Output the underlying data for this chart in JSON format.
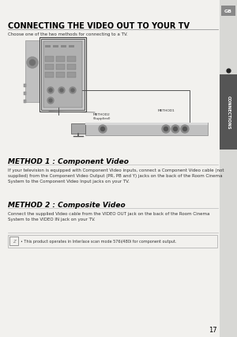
{
  "bg_color": "#f2f1ee",
  "title": "CONNECTING THE VIDEO OUT TO YOUR TV",
  "subtitle": "Choose one of the two methods for connecting to a TV.",
  "method1_title": "METHOD 1 : Component Video",
  "method1_text": "If your television is equipped with Component Video inputs, connect a Component Video cable (not\nsupplied) from the Component Video Output (PR, PB and Y) jacks on the back of the Room Cinema\nSystem to the Component Video Input jacks on your TV.",
  "method2_title": "METHOD 2 : Composite Video",
  "method2_text": "Connect the supplied Video cable from the VIDEO OUT jack on the back of the Room Cinema\nSystem to the VIDEO IN jack on your TV.",
  "note_text": "• This product operates in Interlace scan mode 576i/480i for component output.",
  "tab_text": "CONNECTIONS",
  "page_num": "17",
  "gb_text": "GB",
  "accent_color": "#333333",
  "tab_bg": "#c8c8c8",
  "tab_dark": "#444444",
  "line_color": "#aaaaaa",
  "title_color": "#000000",
  "text_color": "#333333",
  "method2_label": "METHOD2\n(Supplied)",
  "method1_label": "METHOD1"
}
